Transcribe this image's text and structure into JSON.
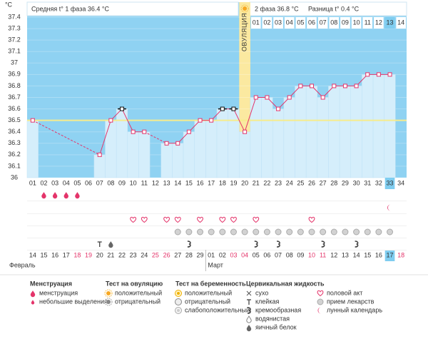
{
  "chart_data": {
    "type": "line",
    "y_label": "°C",
    "header_left": "Средняя t° 1 фаза 36.4 °C",
    "header_right_phase": "2 фаза 36.8 °C",
    "header_right_diff": "Разница t° 0.4 °C",
    "ovulation_label": "ОВУЛЯЦИЯ",
    "ovulation_index": 19,
    "today_index": 32,
    "coverline": 36.5,
    "ylim": [
      36,
      37.4
    ],
    "yticks": [
      36,
      36.1,
      36.2,
      36.3,
      36.4,
      36.5,
      36.6,
      36.7,
      36.8,
      36.9,
      37,
      37.1,
      37.2,
      37.3,
      37.4
    ],
    "categories": [
      "01",
      "02",
      "03",
      "04",
      "05",
      "06",
      "07",
      "08",
      "09",
      "10",
      "11",
      "12",
      "13",
      "14",
      "15",
      "16",
      "17",
      "18",
      "19",
      "20",
      "21",
      "22",
      "23",
      "24",
      "25",
      "26",
      "27",
      "28",
      "29",
      "30",
      "31",
      "32",
      "33",
      "34"
    ],
    "phase2_labels": [
      "01",
      "02",
      "03",
      "04",
      "05",
      "06",
      "07",
      "08",
      "09",
      "10",
      "11",
      "12",
      "13",
      "14"
    ],
    "values": [
      36.5,
      null,
      null,
      null,
      null,
      null,
      36.2,
      36.5,
      36.6,
      36.4,
      36.4,
      null,
      36.3,
      36.3,
      36.4,
      36.5,
      36.5,
      36.6,
      36.6,
      36.4,
      36.7,
      36.7,
      36.6,
      36.7,
      36.8,
      36.8,
      36.7,
      36.8,
      36.8,
      36.8,
      36.9,
      36.9,
      36.9,
      null
    ],
    "excluded": [
      false,
      false,
      false,
      false,
      false,
      false,
      false,
      false,
      true,
      false,
      false,
      false,
      false,
      false,
      false,
      false,
      false,
      true,
      true,
      false,
      false,
      false,
      false,
      false,
      false,
      false,
      false,
      false,
      false,
      false,
      false,
      false,
      false,
      false
    ],
    "color": "#e4346a",
    "dates": [
      "14",
      "15",
      "16",
      "17",
      "18",
      "19",
      "20",
      "21",
      "22",
      "23",
      "24",
      "25",
      "26",
      "27",
      "28",
      "29",
      "01",
      "02",
      "03",
      "04",
      "05",
      "06",
      "07",
      "08",
      "09",
      "10",
      "11",
      "12",
      "13",
      "14",
      "15",
      "16",
      "17",
      "18"
    ],
    "red_dates": [
      false,
      false,
      false,
      false,
      true,
      true,
      false,
      false,
      false,
      false,
      false,
      true,
      true,
      false,
      false,
      false,
      false,
      false,
      true,
      true,
      false,
      false,
      false,
      false,
      false,
      true,
      true,
      false,
      false,
      false,
      false,
      false,
      false,
      true
    ],
    "months": [
      "Февраль",
      "Март"
    ],
    "month_starts": [
      0,
      16
    ],
    "icon_rows": [
      [
        null,
        "menstruation",
        "menstruation",
        "menstruation",
        "menstruation",
        null,
        null,
        null,
        null,
        null,
        null,
        null,
        null,
        null,
        null,
        null,
        null,
        null,
        null,
        null,
        null,
        null,
        null,
        null,
        null,
        null,
        null,
        null,
        null,
        null,
        null,
        null,
        null,
        null
      ],
      [
        null,
        null,
        null,
        null,
        null,
        null,
        null,
        null,
        null,
        null,
        null,
        null,
        null,
        null,
        null,
        null,
        null,
        null,
        null,
        null,
        null,
        null,
        null,
        null,
        null,
        null,
        null,
        null,
        null,
        null,
        null,
        null,
        "moon",
        null
      ],
      [
        null,
        null,
        null,
        null,
        null,
        null,
        null,
        null,
        null,
        "intercourse",
        "intercourse",
        null,
        "intercourse",
        "intercourse",
        null,
        "intercourse",
        null,
        "intercourse",
        "intercourse",
        null,
        "intercourse",
        null,
        null,
        null,
        null,
        "intercourse",
        null,
        null,
        null,
        null,
        null,
        null,
        null,
        null
      ],
      [
        null,
        null,
        null,
        null,
        null,
        null,
        null,
        null,
        null,
        null,
        null,
        null,
        null,
        "pill",
        "pill",
        "pill",
        "pill",
        "pill",
        "pill",
        "pill",
        "pill",
        "pill",
        "pill",
        "pill",
        "pill",
        "pill",
        "pill",
        "pill",
        "pill",
        "pill",
        "pill",
        "pill",
        "pill",
        null
      ],
      [
        null,
        null,
        null,
        null,
        null,
        null,
        "sticky",
        "eggwhite",
        null,
        null,
        null,
        null,
        null,
        null,
        "creamy",
        null,
        null,
        null,
        null,
        null,
        "creamy",
        null,
        "creamy",
        null,
        null,
        null,
        "creamy",
        null,
        null,
        "creamy",
        null,
        null,
        null,
        null
      ]
    ],
    "legend": [
      {
        "title": "Менструация",
        "items": [
          {
            "label": "менструация",
            "icon": "menstruation"
          },
          {
            "label": "небольшие выделения",
            "icon": "spotting"
          }
        ]
      },
      {
        "title": "Тест на овуляцию",
        "items": [
          {
            "label": "положительный",
            "icon": "ovu_pos"
          },
          {
            "label": "отрицательный",
            "icon": "ovu_neg"
          }
        ]
      },
      {
        "title": "Тест на беременность",
        "items": [
          {
            "label": "положительный",
            "icon": "preg_pos"
          },
          {
            "label": "отрицательный",
            "icon": "preg_neg"
          },
          {
            "label": "слабоположительный",
            "icon": "preg_weak"
          }
        ]
      },
      {
        "title": "Цервикальная жидкость",
        "items": [
          {
            "label": "сухо",
            "icon": "dry"
          },
          {
            "label": "клейкая",
            "icon": "sticky"
          },
          {
            "label": "кремообразная",
            "icon": "creamy"
          },
          {
            "label": "водянистая",
            "icon": "watery"
          },
          {
            "label": "яичный белок",
            "icon": "eggwhite"
          }
        ]
      },
      {
        "items": [
          {
            "label": "половой акт",
            "icon": "intercourse"
          },
          {
            "label": "прием лекарств",
            "icon": "pill"
          },
          {
            "label": "лунный календарь",
            "icon": "moon"
          }
        ]
      }
    ]
  }
}
